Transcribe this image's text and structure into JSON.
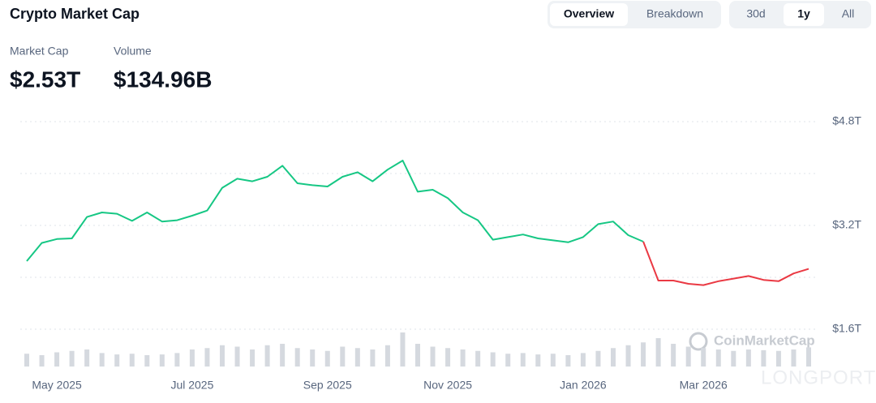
{
  "header": {
    "title": "Crypto Market Cap",
    "tabs": [
      "Overview",
      "Breakdown"
    ],
    "active_tab": 0,
    "ranges": [
      "30d",
      "1y",
      "All"
    ],
    "active_range": 1,
    "stats": [
      {
        "label": "Market Cap",
        "value": "$2.53T"
      },
      {
        "label": "Volume",
        "value": "$134.96B"
      }
    ]
  },
  "watermarks": [
    "CoinMarketCap",
    "LONGPORT"
  ],
  "chart_data": {
    "type": "line",
    "categories": [
      null,
      null,
      "May 2025",
      null,
      null,
      null,
      null,
      null,
      null,
      null,
      null,
      "Jul 2025",
      null,
      null,
      null,
      null,
      null,
      null,
      null,
      null,
      "Sep 2025",
      null,
      null,
      null,
      null,
      null,
      null,
      null,
      "Nov 2025",
      null,
      null,
      null,
      null,
      null,
      null,
      null,
      null,
      "Jan 2026",
      null,
      null,
      null,
      null,
      null,
      null,
      null,
      "Mar 2026",
      null,
      null,
      null,
      null,
      null,
      null,
      null
    ],
    "series": [
      {
        "values": [
          2.65,
          2.93,
          2.99,
          3.0,
          3.33,
          3.4,
          3.38,
          3.27,
          3.4,
          3.26,
          3.28,
          3.35,
          3.43,
          3.78,
          3.92,
          3.88,
          3.95,
          4.12,
          3.85,
          3.82,
          3.8,
          3.95,
          4.02,
          3.88,
          4.06,
          4.2,
          3.72,
          3.75,
          3.62,
          3.4,
          3.28,
          2.98,
          3.02,
          3.06,
          3.0,
          2.97,
          2.94,
          3.02,
          3.22,
          3.26,
          3.05,
          2.95,
          2.35,
          2.35,
          2.3,
          2.28,
          2.34,
          2.38,
          2.42,
          2.36,
          2.34,
          2.46,
          2.53
        ],
        "color": "#16c784",
        "color_below_start": "#ea3943"
      }
    ],
    "volume": {
      "color": "#d5d9df",
      "values": [
        90,
        80,
        100,
        110,
        120,
        95,
        85,
        90,
        80,
        85,
        95,
        120,
        130,
        150,
        140,
        120,
        150,
        160,
        130,
        120,
        110,
        140,
        130,
        120,
        150,
        240,
        160,
        140,
        130,
        120,
        110,
        100,
        90,
        95,
        85,
        90,
        80,
        95,
        110,
        130,
        150,
        170,
        200,
        160,
        140,
        130,
        120,
        110,
        120,
        115,
        110,
        120,
        135
      ]
    },
    "ylim": [
      1.0,
      4.8
    ],
    "yticks": [
      {
        "value": 1.6,
        "label": "$1.6T"
      },
      {
        "value": 3.2,
        "label": "$3.2T"
      },
      {
        "value": 4.8,
        "label": "$4.8T"
      }
    ],
    "minor_yticks": [
      2.4,
      4.0
    ],
    "grid": true
  }
}
